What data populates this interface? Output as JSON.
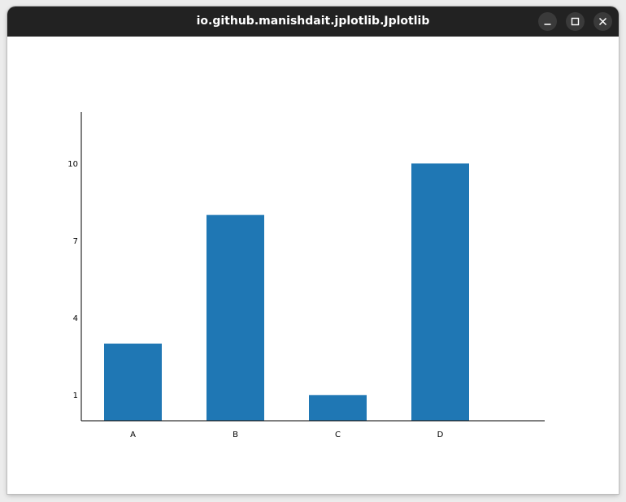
{
  "window": {
    "title": "io.github.manishdait.jplotlib.Jplotlib",
    "controls": [
      "minimize",
      "maximize",
      "close"
    ]
  },
  "chart_data": {
    "type": "bar",
    "categories": [
      "A",
      "B",
      "C",
      "D"
    ],
    "values": [
      3,
      8,
      1,
      10
    ],
    "yticks": [
      1,
      4,
      7,
      10
    ],
    "ylim": [
      0,
      12
    ],
    "bar_color": "#1f77b4",
    "title": "",
    "xlabel": "",
    "ylabel": "",
    "grid": false
  }
}
